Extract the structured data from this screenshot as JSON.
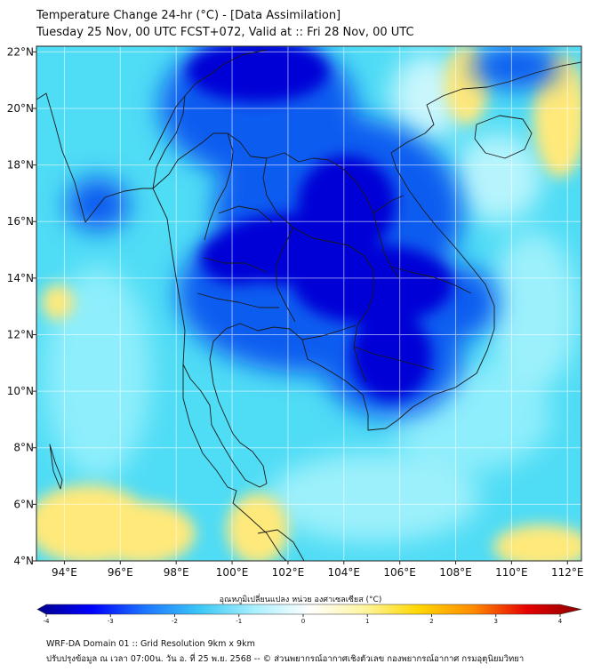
{
  "header": {
    "title": "Temperature Change 24-hr (°C) - [Data Assimilation]",
    "subtitle": "Tuesday 25 Nov, 00 UTC FCST+072, Valid at :: Fri 28 Nov, 00 UTC"
  },
  "map": {
    "lon_range": [
      93,
      112.5
    ],
    "lat_range": [
      4,
      22.2
    ],
    "lon_ticks": [
      "94°E",
      "96°E",
      "98°E",
      "100°E",
      "102°E",
      "104°E",
      "106°E",
      "108°E",
      "110°E",
      "112°E"
    ],
    "lat_ticks": [
      "4°N",
      "6°N",
      "8°N",
      "10°N",
      "12°N",
      "14°N",
      "16°N",
      "18°N",
      "20°N",
      "22°N"
    ],
    "colors": {
      "background_field": "#4fdcf5",
      "strong_cooling": "#0000d6",
      "moderate_cooling": "#0a5cf0",
      "warming": "#ffe97a",
      "coastline": "#1a1a1a",
      "gridline": "#ffffff"
    }
  },
  "colorbar": {
    "label": "อุณหภูมิเปลี่ยนแปลง หน่วย องศาเซลเซียส (°C)",
    "min": -4,
    "max": 4,
    "ticks": [
      "-4",
      "-3",
      "-2",
      "-1",
      "0",
      "1",
      "2",
      "3",
      "4"
    ],
    "stops": [
      "#00008b",
      "#0000ff",
      "#1e78ff",
      "#3cc8f5",
      "#aaf0ff",
      "#ffffff",
      "#fff5a0",
      "#ffd700",
      "#ff8c00",
      "#e60000",
      "#8b0000"
    ]
  },
  "footer": {
    "line1": "WRF-DA Domain 01 :: Grid Resolution 9km x 9km",
    "line2": "ปรับปรุงข้อมูล ณ เวลา 07:00น. วัน อ. ที่ 25 พ.ย. 2568 -- © ส่วนพยากรณ์อากาศเชิงตัวเลข กองพยากรณ์อากาศ กรมอุตุนิยมวิทยา"
  }
}
